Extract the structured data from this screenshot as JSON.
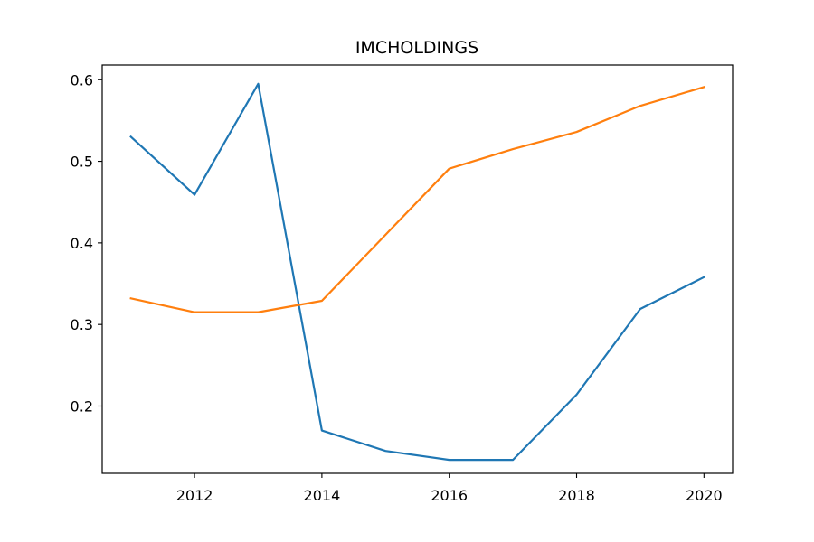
{
  "chart_data": {
    "type": "line",
    "title": "IMCHOLDINGS",
    "xlabel": "",
    "ylabel": "",
    "x": [
      2011,
      2012,
      2013,
      2014,
      2015,
      2016,
      2017,
      2018,
      2019,
      2020
    ],
    "xlim": [
      2010.55,
      2020.45
    ],
    "ylim": [
      0.1175,
      0.618
    ],
    "xticks": [
      2012,
      2014,
      2016,
      2018,
      2020
    ],
    "yticks": [
      0.2,
      0.3,
      0.4,
      0.5,
      0.6
    ],
    "grid": false,
    "legend": "none",
    "series": [
      {
        "color": "#1f77b4",
        "values": [
          0.53,
          0.459,
          0.595,
          0.17,
          0.145,
          0.134,
          0.134,
          0.214,
          0.319,
          0.358
        ]
      },
      {
        "color": "#ff7f0e",
        "values": [
          0.332,
          0.315,
          0.315,
          0.329,
          0.41,
          0.491,
          0.515,
          0.536,
          0.568,
          0.591
        ]
      }
    ]
  }
}
